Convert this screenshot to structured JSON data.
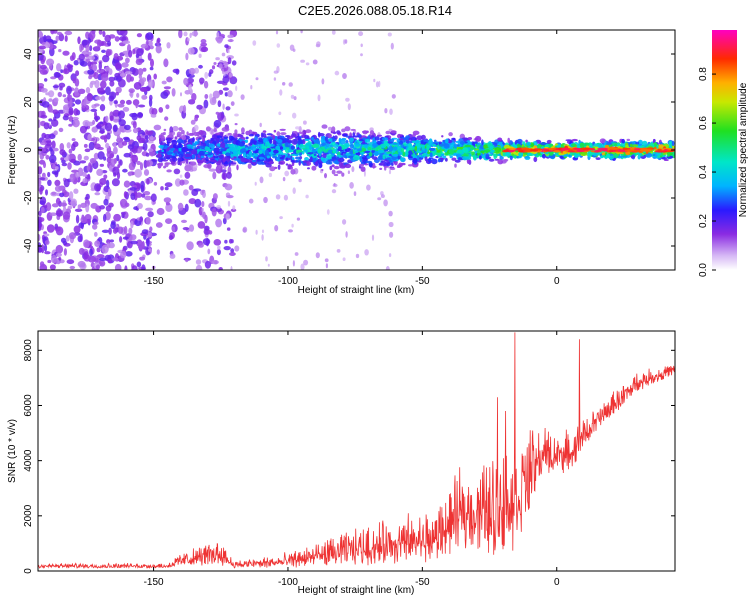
{
  "title": "C2E5.2026.088.05.18.R14",
  "chart_data": [
    {
      "type": "heatmap",
      "xlabel": "Height of straight line (km)",
      "ylabel": "Frequency (Hz)",
      "xlim": [
        -193,
        44
      ],
      "ylim": [
        -50,
        50
      ],
      "xticks": [
        -150,
        -100,
        -50,
        0
      ],
      "yticks": [
        -40,
        -20,
        0,
        20,
        40
      ],
      "colorbar": {
        "label": "Normalized spectral amplitude",
        "range": [
          0.0,
          0.98
        ],
        "ticks": [
          0.0,
          0.2,
          0.4,
          0.6,
          0.8
        ]
      },
      "ridge": [
        {
          "x": -145,
          "halfwidth": 6,
          "level": 0.3
        },
        {
          "x": -120,
          "halfwidth": 7,
          "level": 0.35
        },
        {
          "x": -100,
          "halfwidth": 7,
          "level": 0.4
        },
        {
          "x": -80,
          "halfwidth": 7,
          "level": 0.4
        },
        {
          "x": -60,
          "halfwidth": 6,
          "level": 0.45
        },
        {
          "x": -40,
          "halfwidth": 4.5,
          "level": 0.5
        },
        {
          "x": -20,
          "halfwidth": 3.5,
          "level": 0.6
        },
        {
          "x": 0,
          "halfwidth": 3,
          "level": 0.75
        },
        {
          "x": 44,
          "halfwidth": 3,
          "level": 0.7
        }
      ]
    },
    {
      "type": "line",
      "xlabel": "Height of straight line (km)",
      "ylabel": "SNR (10 * v/v)",
      "xlim": [
        -193,
        44
      ],
      "ylim": [
        0,
        8700
      ],
      "xticks": [
        -150,
        -100,
        -50,
        0
      ],
      "yticks": [
        0,
        2000,
        4000,
        6000,
        8000
      ],
      "series": [
        {
          "color": "#ee3333",
          "envelope": [
            {
              "x": -193,
              "low": 100,
              "high": 300
            },
            {
              "x": -145,
              "low": 100,
              "high": 300
            },
            {
              "x": -140,
              "low": 150,
              "high": 700
            },
            {
              "x": -125,
              "low": 200,
              "high": 1300
            },
            {
              "x": -120,
              "low": 100,
              "high": 400
            },
            {
              "x": -100,
              "low": 100,
              "high": 700
            },
            {
              "x": -80,
              "low": 200,
              "high": 1500
            },
            {
              "x": -60,
              "low": 200,
              "high": 2100
            },
            {
              "x": -45,
              "low": 300,
              "high": 2500
            },
            {
              "x": -35,
              "low": 800,
              "high": 4000
            },
            {
              "x": -25,
              "low": 600,
              "high": 4500
            },
            {
              "x": -20,
              "low": 300,
              "high": 5000
            },
            {
              "x": -15,
              "low": 800,
              "high": 5500
            },
            {
              "x": -5,
              "low": 3500,
              "high": 5400
            },
            {
              "x": 5,
              "low": 3500,
              "high": 5200
            },
            {
              "x": 10,
              "low": 4500,
              "high": 5600
            },
            {
              "x": 20,
              "low": 5500,
              "high": 6500
            },
            {
              "x": 30,
              "low": 6500,
              "high": 7300
            },
            {
              "x": 44,
              "low": 7100,
              "high": 7600
            }
          ],
          "peaks": [
            {
              "x": -15.5,
              "value": 8650
            },
            {
              "x": 8.5,
              "value": 8400
            },
            {
              "x": -22,
              "value": 6300
            },
            {
              "x": -19,
              "value": 5800
            }
          ]
        }
      ]
    }
  ]
}
